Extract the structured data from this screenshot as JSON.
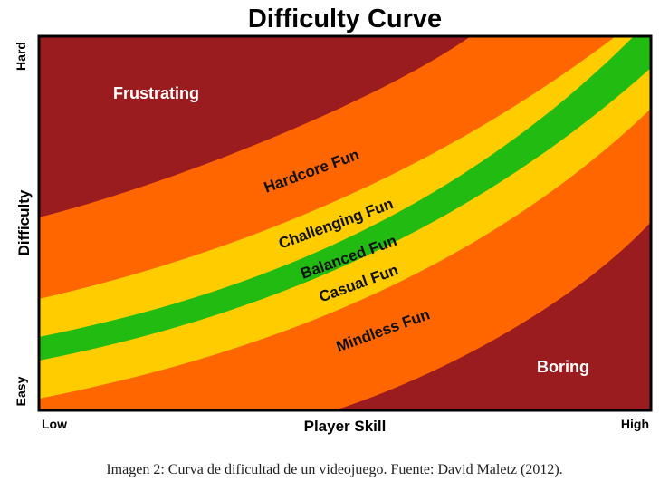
{
  "title": "Difficulty Curve",
  "axes": {
    "x_label": "Player Skill",
    "x_low": "Low",
    "x_high": "High",
    "y_label": "Difficulty",
    "y_low": "Easy",
    "y_high": "Hard"
  },
  "zones": {
    "frustrating": "Frustrating",
    "hardcore": "Hardcore Fun",
    "challenging": "Challenging Fun",
    "balanced": "Balanced Fun",
    "casual": "Casual Fun",
    "mindless": "Mindless Fun",
    "boring": "Boring"
  },
  "colors": {
    "dark_red": "#9b1c1f",
    "orange": "#ff6600",
    "yellow": "#ffcc00",
    "green": "#22bb11",
    "frame": "#000000",
    "dark_label": "#ffffff",
    "band_label": "#111111"
  },
  "caption": "Imagen 2: Curva de dificultad de un videojuego. Fuente: David Maletz (2012)."
}
